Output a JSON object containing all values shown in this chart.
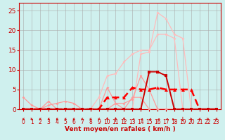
{
  "bg_color": "#cff0ee",
  "grid_color": "#aaaaaa",
  "xlabel": "Vent moyen/en rafales ( km/h )",
  "xlim": [
    -0.5,
    23.5
  ],
  "ylim": [
    0,
    27
  ],
  "x_ticks": [
    0,
    1,
    2,
    3,
    4,
    5,
    6,
    7,
    8,
    9,
    10,
    11,
    12,
    13,
    14,
    15,
    16,
    17,
    18,
    19,
    20,
    21,
    22,
    23
  ],
  "y_ticks": [
    0,
    5,
    10,
    15,
    20,
    25
  ],
  "lines": [
    {
      "x": [
        0,
        1,
        2,
        3,
        4,
        5,
        6,
        7,
        8,
        9,
        10,
        11,
        12,
        13,
        14,
        15,
        16,
        17,
        18,
        19,
        20,
        21,
        22,
        23
      ],
      "y": [
        0,
        0,
        0,
        0,
        0,
        0,
        0,
        0,
        0,
        0,
        0,
        0,
        0,
        0,
        14,
        14.5,
        24.5,
        23,
        19,
        18,
        0,
        0,
        0,
        0
      ],
      "color": "#ffbbbb",
      "lw": 0.9,
      "marker": "D",
      "ms": 2.0,
      "zorder": 2
    },
    {
      "x": [
        0,
        1,
        2,
        3,
        4,
        5,
        6,
        7,
        8,
        9,
        10,
        11,
        12,
        13,
        14,
        15,
        16,
        17,
        18,
        19,
        20,
        21,
        22,
        23
      ],
      "y": [
        0,
        0,
        0,
        0,
        0,
        0,
        0,
        0,
        0,
        3,
        8.5,
        9,
        12,
        14,
        15,
        15,
        19,
        19,
        18,
        0,
        0,
        0,
        0,
        0
      ],
      "color": "#ffbbbb",
      "lw": 0.9,
      "marker": "D",
      "ms": 2.0,
      "zorder": 2
    },
    {
      "x": [
        0,
        1,
        2,
        3,
        4,
        5,
        6,
        7,
        8,
        9,
        10,
        11,
        12,
        13,
        14,
        15,
        16,
        17,
        18,
        19,
        20,
        21,
        22,
        23
      ],
      "y": [
        0,
        0,
        0,
        1,
        1.5,
        2,
        1.5,
        0,
        0,
        0,
        5.5,
        1.5,
        1.5,
        2.5,
        8.5,
        5,
        0,
        0,
        0,
        0,
        0,
        0,
        0,
        0
      ],
      "color": "#ff9999",
      "lw": 0.9,
      "marker": "D",
      "ms": 2.0,
      "zorder": 3
    },
    {
      "x": [
        0,
        1,
        2,
        3,
        4,
        5,
        6,
        7,
        8,
        9,
        10,
        11,
        12,
        13,
        14,
        15,
        16,
        17,
        18,
        19,
        20,
        21,
        22,
        23
      ],
      "y": [
        3,
        1,
        0,
        2,
        0,
        0,
        0,
        0,
        0,
        0,
        0,
        1.5,
        0,
        3,
        3,
        0,
        0,
        0,
        0,
        0,
        0,
        0,
        0,
        0
      ],
      "color": "#ff9999",
      "lw": 0.9,
      "marker": "D",
      "ms": 2.0,
      "zorder": 3
    },
    {
      "x": [
        0,
        1,
        2,
        3,
        4,
        5,
        6,
        7,
        8,
        9,
        10,
        11,
        12,
        13,
        14,
        15,
        16,
        17,
        18,
        19,
        20,
        21,
        22,
        23
      ],
      "y": [
        0,
        0,
        0,
        0,
        0,
        0,
        0,
        0,
        0,
        0,
        3,
        3,
        3,
        5.5,
        5,
        5,
        5.5,
        5,
        5,
        5,
        5,
        0,
        0,
        0
      ],
      "color": "#ff0000",
      "lw": 1.8,
      "marker": "^",
      "ms": 3.5,
      "zorder": 4,
      "dashes": [
        4,
        2
      ]
    },
    {
      "x": [
        0,
        1,
        2,
        3,
        4,
        5,
        6,
        7,
        8,
        9,
        10,
        11,
        12,
        13,
        14,
        15,
        16,
        17,
        18,
        19,
        20,
        21,
        22,
        23
      ],
      "y": [
        0,
        0,
        0,
        0,
        0,
        0,
        0,
        0,
        0,
        0,
        0,
        0,
        0,
        0,
        0,
        9.5,
        9.5,
        8.5,
        0,
        0,
        0,
        0,
        0,
        0
      ],
      "color": "#cc0000",
      "lw": 1.4,
      "marker": "s",
      "ms": 2.5,
      "zorder": 5
    }
  ],
  "wind_arrows": {
    "x": [
      0,
      1,
      2,
      3,
      4,
      5,
      6,
      7,
      8,
      9,
      10,
      11,
      12,
      13,
      14,
      15,
      16,
      17,
      18,
      19,
      20,
      21,
      22,
      23
    ],
    "angles_deg": [
      315,
      45,
      315,
      315,
      315,
      315,
      315,
      315,
      315,
      315,
      180,
      180,
      180,
      270,
      270,
      270,
      270,
      270,
      90,
      0,
      45,
      315,
      45,
      315
    ]
  }
}
